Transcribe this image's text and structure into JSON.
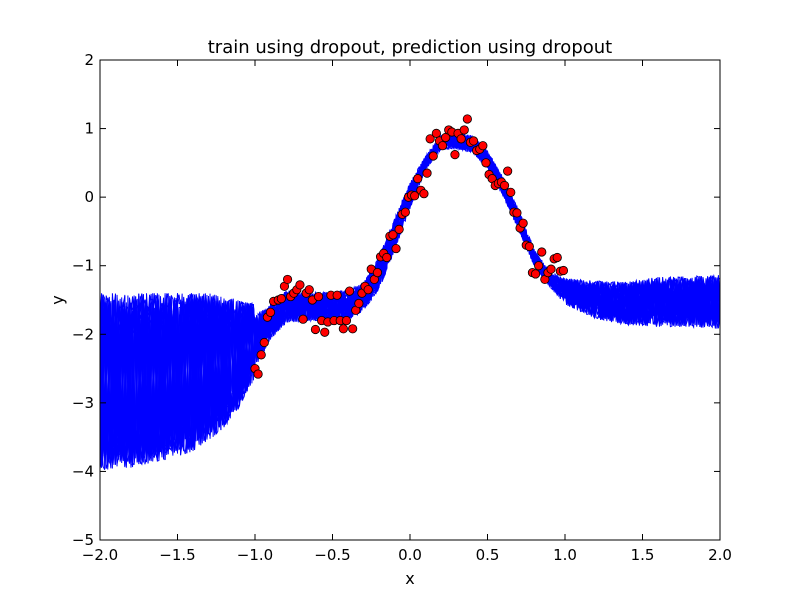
{
  "chart_data": {
    "type": "line",
    "title": "train using dropout, prediction using dropout",
    "xlabel": "x",
    "ylabel": "y",
    "xlim": [
      -2.0,
      2.0
    ],
    "ylim": [
      -5,
      2
    ],
    "grid": false,
    "legend": "none",
    "xticks": [
      -2.0,
      -1.5,
      -1.0,
      -0.5,
      0.0,
      0.5,
      1.0,
      1.5,
      2.0
    ],
    "xtick_labels": [
      "−2.0",
      "−1.5",
      "−1.0",
      "−0.5",
      "0.0",
      "0.5",
      "1.0",
      "1.5",
      "2.0"
    ],
    "yticks": [
      -5,
      -4,
      -3,
      -2,
      -1,
      0,
      1,
      2
    ],
    "ytick_labels": [
      "−5",
      "−4",
      "−3",
      "−2",
      "−1",
      "0",
      "1",
      "2"
    ],
    "colors": {
      "prediction_line": "#0000ff",
      "observation_fill": "#ff0000",
      "observation_edge": "#000000"
    },
    "prediction_envelope": {
      "x": [
        -2.0,
        -1.9,
        -1.8,
        -1.7,
        -1.6,
        -1.5,
        -1.4,
        -1.3,
        -1.2,
        -1.1,
        -1.0,
        -0.9,
        -0.8,
        -0.7,
        -0.6,
        -0.5,
        -0.4,
        -0.3,
        -0.2,
        -0.1,
        0.0,
        0.1,
        0.2,
        0.3,
        0.4,
        0.5,
        0.6,
        0.7,
        0.8,
        0.9,
        1.0,
        1.2,
        1.4,
        1.6,
        1.8,
        2.0
      ],
      "upper": [
        -1.4,
        -1.4,
        -1.4,
        -1.4,
        -1.4,
        -1.4,
        -1.4,
        -1.4,
        -1.45,
        -1.5,
        -1.55,
        -1.45,
        -1.25,
        -1.3,
        -1.3,
        -1.3,
        -1.25,
        -1.15,
        -0.75,
        -0.2,
        0.3,
        0.65,
        0.95,
        1.0,
        0.95,
        0.75,
        0.35,
        -0.1,
        -0.7,
        -1.05,
        -1.1,
        -1.1,
        -1.1,
        -1.0,
        -1.0,
        -0.95
      ],
      "lower": [
        -4.05,
        -4.0,
        -4.0,
        -3.95,
        -3.9,
        -3.85,
        -3.75,
        -3.6,
        -3.4,
        -3.1,
        -2.65,
        -2.2,
        -1.95,
        -1.9,
        -1.9,
        -1.9,
        -1.9,
        -1.75,
        -1.45,
        -0.9,
        -0.25,
        0.35,
        0.65,
        0.65,
        0.6,
        0.35,
        -0.05,
        -0.55,
        -1.05,
        -1.35,
        -1.65,
        -1.9,
        -2.0,
        -2.05,
        -2.05,
        -2.1
      ]
    },
    "points": [
      [
        -1.0,
        -2.5
      ],
      [
        -0.98,
        -2.58
      ],
      [
        -0.96,
        -2.3
      ],
      [
        -0.94,
        -2.12
      ],
      [
        -0.92,
        -1.75
      ],
      [
        -0.9,
        -1.68
      ],
      [
        -0.88,
        -1.52
      ],
      [
        -0.85,
        -1.5
      ],
      [
        -0.83,
        -1.48
      ],
      [
        -0.81,
        -1.3
      ],
      [
        -0.79,
        -1.2
      ],
      [
        -0.77,
        -1.45
      ],
      [
        -0.75,
        -1.4
      ],
      [
        -0.73,
        -1.35
      ],
      [
        -0.71,
        -1.28
      ],
      [
        -0.69,
        -1.78
      ],
      [
        -0.67,
        -1.4
      ],
      [
        -0.65,
        -1.35
      ],
      [
        -0.63,
        -1.5
      ],
      [
        -0.61,
        -1.93
      ],
      [
        -0.59,
        -1.45
      ],
      [
        -0.57,
        -1.8
      ],
      [
        -0.55,
        -1.97
      ],
      [
        -0.53,
        -1.82
      ],
      [
        -0.51,
        -1.43
      ],
      [
        -0.49,
        -1.8
      ],
      [
        -0.47,
        -1.43
      ],
      [
        -0.45,
        -1.8
      ],
      [
        -0.43,
        -1.92
      ],
      [
        -0.41,
        -1.8
      ],
      [
        -0.39,
        -1.37
      ],
      [
        -0.37,
        -1.92
      ],
      [
        -0.35,
        -1.65
      ],
      [
        -0.33,
        -1.55
      ],
      [
        -0.31,
        -1.4
      ],
      [
        -0.29,
        -1.3
      ],
      [
        -0.27,
        -1.35
      ],
      [
        -0.25,
        -1.05
      ],
      [
        -0.23,
        -1.2
      ],
      [
        -0.21,
        -1.1
      ],
      [
        -0.19,
        -0.87
      ],
      [
        -0.17,
        -0.82
      ],
      [
        -0.15,
        -0.88
      ],
      [
        -0.13,
        -0.57
      ],
      [
        -0.11,
        -0.55
      ],
      [
        -0.09,
        -0.75
      ],
      [
        -0.07,
        -0.47
      ],
      [
        -0.05,
        -0.25
      ],
      [
        -0.03,
        -0.22
      ],
      [
        -0.01,
        0.0
      ],
      [
        0.01,
        0.03
      ],
      [
        0.03,
        0.02
      ],
      [
        0.05,
        0.27
      ],
      [
        0.07,
        0.1
      ],
      [
        0.09,
        0.05
      ],
      [
        0.11,
        0.35
      ],
      [
        0.13,
        0.85
      ],
      [
        0.15,
        0.6
      ],
      [
        0.17,
        0.93
      ],
      [
        0.19,
        0.82
      ],
      [
        0.21,
        0.75
      ],
      [
        0.23,
        0.87
      ],
      [
        0.25,
        0.98
      ],
      [
        0.27,
        0.95
      ],
      [
        0.29,
        0.62
      ],
      [
        0.31,
        0.93
      ],
      [
        0.33,
        0.85
      ],
      [
        0.35,
        0.98
      ],
      [
        0.37,
        1.14
      ],
      [
        0.39,
        0.8
      ],
      [
        0.41,
        0.82
      ],
      [
        0.43,
        0.68
      ],
      [
        0.45,
        0.7
      ],
      [
        0.47,
        0.75
      ],
      [
        0.49,
        0.5
      ],
      [
        0.51,
        0.33
      ],
      [
        0.53,
        0.27
      ],
      [
        0.55,
        0.17
      ],
      [
        0.57,
        0.2
      ],
      [
        0.59,
        0.22
      ],
      [
        0.61,
        0.17
      ],
      [
        0.63,
        0.38
      ],
      [
        0.65,
        0.07
      ],
      [
        0.67,
        -0.22
      ],
      [
        0.69,
        -0.23
      ],
      [
        0.71,
        -0.45
      ],
      [
        0.73,
        -0.38
      ],
      [
        0.75,
        -0.7
      ],
      [
        0.77,
        -0.72
      ],
      [
        0.79,
        -1.1
      ],
      [
        0.81,
        -1.12
      ],
      [
        0.83,
        -1.0
      ],
      [
        0.85,
        -0.8
      ],
      [
        0.87,
        -1.2
      ],
      [
        0.89,
        -1.1
      ],
      [
        0.91,
        -1.05
      ],
      [
        0.93,
        -0.9
      ],
      [
        0.95,
        -0.88
      ],
      [
        0.97,
        -1.08
      ],
      [
        0.99,
        -1.07
      ]
    ]
  }
}
